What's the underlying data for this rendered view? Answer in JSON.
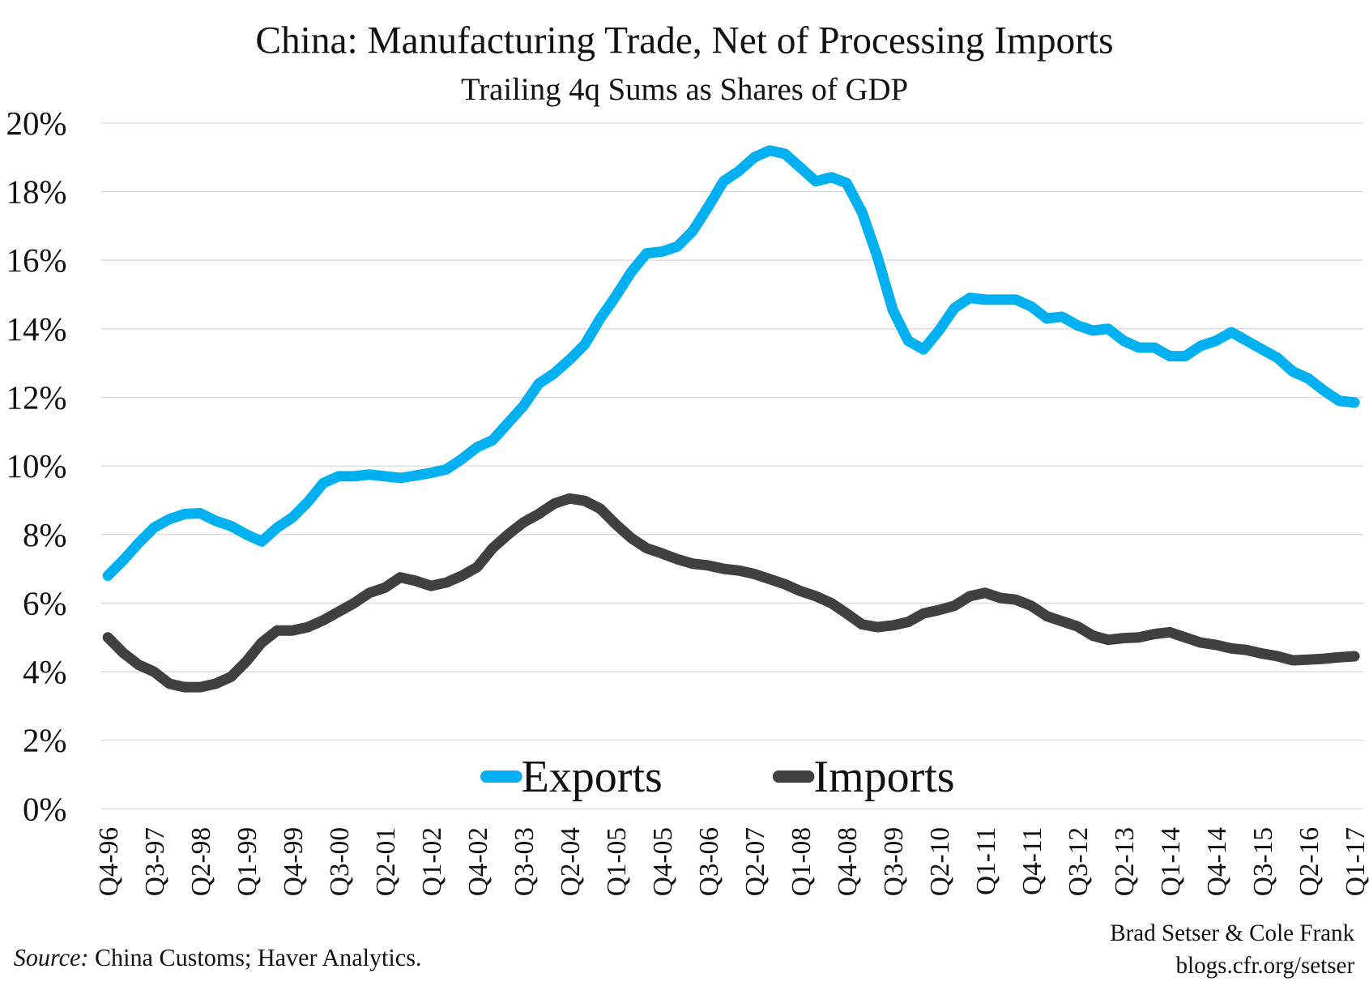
{
  "chart_data": {
    "type": "line",
    "title": "China: Manufacturing Trade, Net of Processing Imports",
    "subtitle": "Trailing 4q Sums as Shares of GDP",
    "xlabel": "",
    "ylabel": "",
    "ylim": [
      0,
      20
    ],
    "y_ticks": [
      "0%",
      "2%",
      "4%",
      "6%",
      "8%",
      "10%",
      "12%",
      "14%",
      "16%",
      "18%",
      "20%"
    ],
    "grid": true,
    "legend_position": "bottom-center",
    "x": [
      "Q4-96",
      "Q1-97",
      "Q2-97",
      "Q3-97",
      "Q4-97",
      "Q1-98",
      "Q2-98",
      "Q3-98",
      "Q4-98",
      "Q1-99",
      "Q2-99",
      "Q3-99",
      "Q4-99",
      "Q1-00",
      "Q2-00",
      "Q3-00",
      "Q4-00",
      "Q1-01",
      "Q2-01",
      "Q3-01",
      "Q4-01",
      "Q1-02",
      "Q2-02",
      "Q3-02",
      "Q4-02",
      "Q1-03",
      "Q2-03",
      "Q3-03",
      "Q4-03",
      "Q1-04",
      "Q2-04",
      "Q3-04",
      "Q4-04",
      "Q1-05",
      "Q2-05",
      "Q3-05",
      "Q4-05",
      "Q1-06",
      "Q2-06",
      "Q3-06",
      "Q4-06",
      "Q1-07",
      "Q2-07",
      "Q3-07",
      "Q4-07",
      "Q1-08",
      "Q2-08",
      "Q3-08",
      "Q4-08",
      "Q1-09",
      "Q2-09",
      "Q3-09",
      "Q4-09",
      "Q1-10",
      "Q2-10",
      "Q3-10",
      "Q4-10",
      "Q1-11",
      "Q2-11",
      "Q3-11",
      "Q4-11",
      "Q1-12",
      "Q2-12",
      "Q3-12",
      "Q4-12",
      "Q1-13",
      "Q2-13",
      "Q3-13",
      "Q4-13",
      "Q1-14",
      "Q2-14",
      "Q3-14",
      "Q4-14",
      "Q1-15",
      "Q2-15",
      "Q3-15",
      "Q4-15",
      "Q1-16",
      "Q2-16",
      "Q3-16",
      "Q4-16",
      "Q1-17"
    ],
    "x_tick_labels": [
      "Q4-96",
      "Q3-97",
      "Q2-98",
      "Q1-99",
      "Q4-99",
      "Q3-00",
      "Q2-01",
      "Q1-02",
      "Q4-02",
      "Q3-03",
      "Q2-04",
      "Q1-05",
      "Q4-05",
      "Q3-06",
      "Q2-07",
      "Q1-08",
      "Q4-08",
      "Q3-09",
      "Q2-10",
      "Q1-11",
      "Q4-11",
      "Q3-12",
      "Q2-13",
      "Q1-14",
      "Q4-14",
      "Q3-15",
      "Q2-16",
      "Q1-17"
    ],
    "series": [
      {
        "name": "Exports",
        "color": "#00b0f0",
        "values": [
          6.8,
          7.25,
          7.75,
          8.2,
          8.45,
          8.6,
          8.62,
          8.4,
          8.25,
          8.0,
          7.8,
          8.2,
          8.5,
          8.95,
          9.5,
          9.7,
          9.7,
          9.75,
          9.7,
          9.65,
          9.72,
          9.8,
          9.9,
          10.2,
          10.55,
          10.75,
          11.25,
          11.75,
          12.4,
          12.7,
          13.1,
          13.55,
          14.3,
          14.95,
          15.65,
          16.2,
          16.25,
          16.4,
          16.85,
          17.55,
          18.3,
          18.6,
          19.0,
          19.2,
          19.1,
          18.7,
          18.3,
          18.42,
          18.25,
          17.4,
          16.1,
          14.55,
          13.65,
          13.4,
          13.95,
          14.6,
          14.9,
          14.85,
          14.85,
          14.85,
          14.65,
          14.3,
          14.35,
          14.1,
          13.95,
          14.0,
          13.65,
          13.45,
          13.45,
          13.2,
          13.2,
          13.5,
          13.65,
          13.9,
          13.65,
          13.4,
          13.15,
          12.75,
          12.55,
          12.2,
          11.9,
          11.85
        ]
      },
      {
        "name": "Imports",
        "color": "#404040",
        "values": [
          5.0,
          4.55,
          4.2,
          4.0,
          3.65,
          3.55,
          3.55,
          3.65,
          3.85,
          4.3,
          4.85,
          5.2,
          5.2,
          5.3,
          5.5,
          5.75,
          6.0,
          6.3,
          6.45,
          6.75,
          6.65,
          6.5,
          6.6,
          6.8,
          7.05,
          7.6,
          8.0,
          8.35,
          8.6,
          8.9,
          9.05,
          8.98,
          8.75,
          8.3,
          7.9,
          7.6,
          7.45,
          7.28,
          7.15,
          7.1,
          7.0,
          6.95,
          6.85,
          6.7,
          6.55,
          6.35,
          6.2,
          6.0,
          5.7,
          5.38,
          5.3,
          5.35,
          5.45,
          5.7,
          5.8,
          5.92,
          6.2,
          6.3,
          6.15,
          6.1,
          5.92,
          5.62,
          5.47,
          5.32,
          5.05,
          4.93,
          4.98,
          5.0,
          5.1,
          5.15,
          5.0,
          4.85,
          4.78,
          4.68,
          4.63,
          4.53,
          4.45,
          4.33,
          4.35,
          4.38,
          4.42,
          4.45
        ]
      }
    ]
  },
  "footer": {
    "source_label": "Source:",
    "source_text": " China Customs; Haver Analytics.",
    "credit_authors": "Brad Setser & Cole Frank",
    "credit_url": "blogs.cfr.org/setser"
  }
}
